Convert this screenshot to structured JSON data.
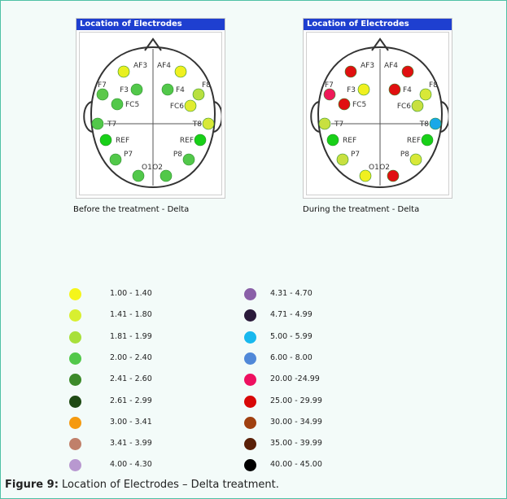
{
  "panels": [
    {
      "title": "Location of  Electrodes",
      "caption": "Before  the treatment   - Delta",
      "electrodes": [
        {
          "label": "AF3",
          "color": "#e8f020"
        },
        {
          "label": "AF4",
          "color": "#f0f020"
        },
        {
          "label": "F7",
          "color": "#5cc84a"
        },
        {
          "label": "F3",
          "color": "#52c84a"
        },
        {
          "label": "F4",
          "color": "#52c84a"
        },
        {
          "label": "F8",
          "color": "#b8e040"
        },
        {
          "label": "FC5",
          "color": "#52c84a"
        },
        {
          "label": "FC6",
          "color": "#e0ec30"
        },
        {
          "label": "T7",
          "color": "#52c84a"
        },
        {
          "label": "T8",
          "color": "#d8e838"
        },
        {
          "label": "REF",
          "color": "#18d018"
        },
        {
          "label": "REF",
          "color": "#18d018"
        },
        {
          "label": "P7",
          "color": "#52c84a"
        },
        {
          "label": "P8",
          "color": "#52c84a"
        },
        {
          "label": "O1",
          "color": "#52c84a"
        },
        {
          "label": "O2",
          "color": "#52c84a"
        }
      ]
    },
    {
      "title": "Location of  Electrodes",
      "caption": "During  the treatment - Delta",
      "electrodes": [
        {
          "label": "AF3",
          "color": "#e01010"
        },
        {
          "label": "AF4",
          "color": "#e01010"
        },
        {
          "label": "F7",
          "color": "#ee1a5a"
        },
        {
          "label": "F3",
          "color": "#f0f020"
        },
        {
          "label": "F4",
          "color": "#e01010"
        },
        {
          "label": "F8",
          "color": "#d8e838"
        },
        {
          "label": "FC5",
          "color": "#e01010"
        },
        {
          "label": "FC6",
          "color": "#c8e040"
        },
        {
          "label": "T7",
          "color": "#c8e040"
        },
        {
          "label": "T8",
          "color": "#18a8e8"
        },
        {
          "label": "REF",
          "color": "#18d018"
        },
        {
          "label": "REF",
          "color": "#18d018"
        },
        {
          "label": "P7",
          "color": "#c8e040"
        },
        {
          "label": "P8",
          "color": "#d8e838"
        },
        {
          "label": "O1",
          "color": "#f0f020"
        },
        {
          "label": "O2",
          "color": "#e01010"
        }
      ]
    }
  ],
  "legend_left": [
    {
      "range": "1.00 - 1.40",
      "color": "#f5f51a"
    },
    {
      "range": "1.41 - 1.80",
      "color": "#d8ef30"
    },
    {
      "range": "1.81 - 1.99",
      "color": "#a8e03a"
    },
    {
      "range": "2.00 - 2.40",
      "color": "#52c84a"
    },
    {
      "range": "2.41 - 2.60",
      "color": "#3c8a2a"
    },
    {
      "range": "2.61 - 2.99",
      "color": "#1e4a14"
    },
    {
      "range": "3.00 - 3.41",
      "color": "#f59a10"
    },
    {
      "range": "3.41 - 3.99",
      "color": "#c0806a"
    },
    {
      "range": "4.00 - 4.30",
      "color": "#b898d0"
    }
  ],
  "legend_right": [
    {
      "range": "4.31 - 4.70",
      "color": "#8a60a8"
    },
    {
      "range": "4.71 - 4.99",
      "color": "#2a1a3a"
    },
    {
      "range": "5.00 - 5.99",
      "color": "#18b8ee"
    },
    {
      "range": "6.00 - 8.00",
      "color": "#5088d8"
    },
    {
      "range": "20.00 -24.99",
      "color": "#ee1060"
    },
    {
      "range": "25.00 - 29.99",
      "color": "#d80808"
    },
    {
      "range": "30.00 - 34.99",
      "color": "#a04010"
    },
    {
      "range": "35.00 - 39.99",
      "color": "#5a2008"
    },
    {
      "range": "40.00 - 45.00",
      "color": "#000000"
    }
  ],
  "figure_caption": {
    "label": "Figure 9:",
    "text": " Location of Electrodes – Delta treatment."
  }
}
